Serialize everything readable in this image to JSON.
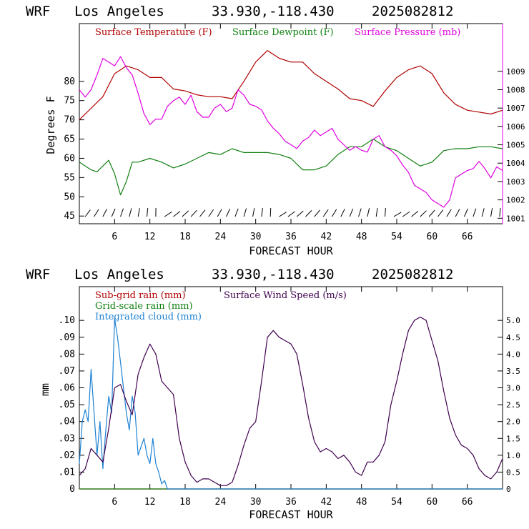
{
  "chart_data": [
    {
      "type": "line",
      "header": {
        "model": "WRF",
        "location": "Los Angeles",
        "coords": "33.930,-118.430",
        "init": "2025082812"
      },
      "xlabel": "FORECAST HOUR",
      "ylabel": "Degrees F",
      "xlim": [
        0,
        72
      ],
      "ylim": [
        43,
        95
      ],
      "y2lim": [
        1000.7,
        1011.6
      ],
      "x_ticks": [
        6,
        12,
        18,
        24,
        30,
        36,
        42,
        48,
        54,
        60,
        66
      ],
      "x_tick_labels": [
        "6",
        "12",
        "18",
        "24",
        "30",
        "36",
        "42",
        "48",
        "54",
        "60",
        "66"
      ],
      "y_ticks": [
        45,
        50,
        55,
        60,
        65,
        70,
        75,
        80
      ],
      "y_tick_labels": [
        "45",
        "50",
        "55",
        "60",
        "65",
        "70",
        "75",
        "80"
      ],
      "y2_ticks": [
        1001,
        1002,
        1003,
        1004,
        1005,
        1006,
        1007,
        1008,
        1009
      ],
      "y2_tick_labels": [
        "1001",
        "1002",
        "1003",
        "1004",
        "1005",
        "1006",
        "1007",
        "1008",
        "1009"
      ],
      "legend": [
        {
          "label": "Surface Temperature (F)",
          "color": "#b00000"
        },
        {
          "label": "Surface Dewpoint (F)",
          "color": "#108010"
        },
        {
          "label": "Surface Pressure (mb)",
          "color": "#e000e0"
        }
      ],
      "series": [
        {
          "name": "Surface Temperature (F)",
          "color": "#b00000",
          "axis": "left",
          "x": [
            0,
            2,
            4,
            6,
            8,
            10,
            12,
            14,
            16,
            18,
            20,
            22,
            24,
            26,
            28,
            30,
            32,
            34,
            36,
            38,
            40,
            42,
            44,
            46,
            48,
            50,
            52,
            54,
            56,
            58,
            60,
            62,
            64,
            66,
            68,
            70,
            72
          ],
          "y": [
            70,
            73,
            76,
            82,
            84,
            83,
            81,
            81,
            78,
            77.5,
            76.5,
            76,
            76,
            75.5,
            80,
            85,
            88,
            86,
            85,
            85,
            82,
            80,
            78,
            75.5,
            75,
            73.5,
            77.5,
            81,
            83,
            84,
            82,
            77,
            74,
            72.5,
            72,
            71.5,
            72.5
          ]
        },
        {
          "name": "Surface Dewpoint (F)",
          "color": "#108010",
          "axis": "left",
          "x": [
            0,
            2,
            3,
            4,
            5,
            6,
            7,
            8,
            9,
            10,
            12,
            14,
            16,
            18,
            20,
            22,
            24,
            26,
            28,
            30,
            32,
            34,
            36,
            38,
            40,
            42,
            44,
            46,
            48,
            50,
            52,
            54,
            56,
            58,
            60,
            62,
            64,
            66,
            68,
            70,
            72
          ],
          "y": [
            59,
            57,
            56.5,
            58,
            59.5,
            56,
            50.5,
            54,
            59,
            59,
            60,
            59,
            57.5,
            58.5,
            60,
            61.5,
            61,
            62.5,
            61.5,
            61.5,
            61.5,
            61,
            60,
            57,
            57,
            58,
            61,
            63,
            63,
            65,
            63,
            62,
            60,
            58,
            59,
            62,
            62.5,
            62.5,
            63,
            63,
            62.5
          ]
        },
        {
          "name": "Surface Pressure (mb)",
          "color": "#e000e0",
          "axis": "right",
          "x": [
            0,
            1,
            2,
            3,
            4,
            5,
            6,
            7,
            8,
            9,
            10,
            11,
            12,
            13,
            14,
            15,
            16,
            17,
            18,
            19,
            20,
            21,
            22,
            23,
            24,
            25,
            26,
            27,
            28,
            29,
            30,
            31,
            32,
            33,
            34,
            35,
            36,
            37,
            38,
            39,
            40,
            41,
            42,
            43,
            44,
            45,
            46,
            47,
            48,
            49,
            50,
            51,
            52,
            53,
            54,
            55,
            56,
            57,
            58,
            59,
            60,
            61,
            62,
            63,
            64,
            65,
            66,
            67,
            68,
            69,
            70,
            71,
            72
          ],
          "y": [
            1008,
            1007.6,
            1008,
            1008.8,
            1009.7,
            1009.5,
            1009.3,
            1009.8,
            1009.2,
            1008.8,
            1007.8,
            1006.7,
            1006.1,
            1006.4,
            1006.4,
            1007.1,
            1007.4,
            1007.6,
            1007.2,
            1007.7,
            1006.8,
            1006.5,
            1006.5,
            1007.0,
            1007.2,
            1006.8,
            1007.0,
            1008.0,
            1007.7,
            1007.2,
            1007.1,
            1006.9,
            1006.3,
            1005.9,
            1005.6,
            1005.2,
            1005.0,
            1004.8,
            1005.2,
            1005.4,
            1005.8,
            1005.5,
            1005.7,
            1005.9,
            1005.3,
            1005.0,
            1004.7,
            1004.9,
            1004.7,
            1004.6,
            1005.3,
            1005.5,
            1004.9,
            1004.7,
            1004.4,
            1003.9,
            1003.5,
            1002.8,
            1002.6,
            1002.4,
            1002.0,
            1001.8,
            1001.6,
            1002.0,
            1003.2,
            1003.4,
            1003.6,
            1003.7,
            1004.1,
            1003.7,
            1003.2,
            1003.8,
            1003.6
          ]
        }
      ],
      "wind_barbs": "row of wind barbs along the bottom of the panel"
    },
    {
      "type": "line",
      "header": {
        "model": "WRF",
        "location": "Los Angeles",
        "coords": "33.930,-118.430",
        "init": "2025082812"
      },
      "xlabel": "FORECAST HOUR",
      "ylabel": "mm",
      "xlim": [
        0,
        72
      ],
      "ylim": [
        0,
        0.12
      ],
      "y2lim": [
        0,
        6.0
      ],
      "x_ticks": [
        6,
        12,
        18,
        24,
        30,
        36,
        42,
        48,
        54,
        60,
        66
      ],
      "x_tick_labels": [
        "6",
        "12",
        "18",
        "24",
        "30",
        "36",
        "42",
        "48",
        "54",
        "60",
        "66"
      ],
      "y_ticks": [
        0,
        0.01,
        0.02,
        0.03,
        0.04,
        0.05,
        0.06,
        0.07,
        0.08,
        0.09,
        0.1
      ],
      "y_tick_labels": [
        "0",
        ".01",
        ".02",
        ".03",
        ".04",
        ".05",
        ".06",
        ".07",
        ".08",
        ".09",
        ".10"
      ],
      "y2_ticks": [
        0,
        0.5,
        1.0,
        1.5,
        2.0,
        2.5,
        3.0,
        3.5,
        4.0,
        4.5,
        5.0
      ],
      "y2_tick_labels": [
        "0",
        "0.5",
        "1.0",
        "1.5",
        "2.0",
        "2.5",
        "3.0",
        "3.5",
        "4.0",
        "4.5",
        "5.0"
      ],
      "legend": [
        {
          "label": "Sub-grid rain (mm)",
          "color": "#b00000"
        },
        {
          "label": "Surface Wind Speed (m/s)",
          "color": "#400050"
        },
        {
          "label": "Grid-scale rain (mm)",
          "color": "#108010"
        },
        {
          "label": "Integrated cloud (mm)",
          "color": "#1e82d2"
        }
      ],
      "series": [
        {
          "name": "Sub-grid rain (mm)",
          "color": "#b00000",
          "axis": "left",
          "x": [
            0,
            72
          ],
          "y": [
            0,
            0
          ]
        },
        {
          "name": "Grid-scale rain (mm)",
          "color": "#108010",
          "axis": "left",
          "x": [
            0,
            72
          ],
          "y": [
            0,
            0
          ]
        },
        {
          "name": "Integrated cloud (mm)",
          "color": "#1e82d2",
          "axis": "left",
          "x": [
            0,
            0.5,
            1,
            1.5,
            2,
            2.5,
            3,
            3.5,
            4,
            4.5,
            5,
            5.5,
            6,
            6.5,
            7,
            7.5,
            8,
            8.5,
            9,
            9.5,
            10,
            10.5,
            11,
            11.5,
            12,
            12.5,
            13,
            13.5,
            14,
            14.5,
            15,
            16,
            72
          ],
          "y": [
            0.015,
            0.04,
            0.047,
            0.04,
            0.071,
            0.045,
            0.02,
            0.04,
            0.012,
            0.035,
            0.055,
            0.045,
            0.101,
            0.09,
            0.075,
            0.06,
            0.045,
            0.035,
            0.055,
            0.045,
            0.02,
            0.025,
            0.03,
            0.02,
            0.015,
            0.03,
            0.015,
            0.01,
            0.003,
            0.005,
            0,
            0,
            0
          ]
        },
        {
          "name": "Surface Wind Speed (m/s)",
          "color": "#400050",
          "axis": "right",
          "x": [
            0,
            1,
            2,
            3,
            4,
            5,
            6,
            7,
            8,
            9,
            10,
            11,
            12,
            13,
            14,
            15,
            16,
            17,
            18,
            19,
            20,
            21,
            22,
            23,
            24,
            25,
            26,
            27,
            28,
            29,
            30,
            31,
            32,
            33,
            34,
            35,
            36,
            37,
            38,
            39,
            40,
            41,
            42,
            43,
            44,
            45,
            46,
            47,
            48,
            49,
            50,
            51,
            52,
            53,
            54,
            55,
            56,
            57,
            58,
            59,
            60,
            61,
            62,
            63,
            64,
            65,
            66,
            67,
            68,
            69,
            70,
            71,
            72
          ],
          "y": [
            0.4,
            0.6,
            1.2,
            1.0,
            0.8,
            1.8,
            3.0,
            3.1,
            2.6,
            2.2,
            3.4,
            3.9,
            4.3,
            4.0,
            3.2,
            3.0,
            2.8,
            1.5,
            0.8,
            0.4,
            0.2,
            0.3,
            0.3,
            0.2,
            0.1,
            0.1,
            0.2,
            0.7,
            1.3,
            1.8,
            2.0,
            3.2,
            4.5,
            4.7,
            4.5,
            4.4,
            4.3,
            4.0,
            3.1,
            2.1,
            1.4,
            1.1,
            1.2,
            1.1,
            0.9,
            1.0,
            0.8,
            0.5,
            0.4,
            0.8,
            0.8,
            1.0,
            1.4,
            2.5,
            3.2,
            4.0,
            4.7,
            5.0,
            5.1,
            5.0,
            4.4,
            3.8,
            2.9,
            2.1,
            1.6,
            1.3,
            1.2,
            1.0,
            0.6,
            0.4,
            0.3,
            0.5,
            0.9
          ]
        }
      ]
    }
  ]
}
